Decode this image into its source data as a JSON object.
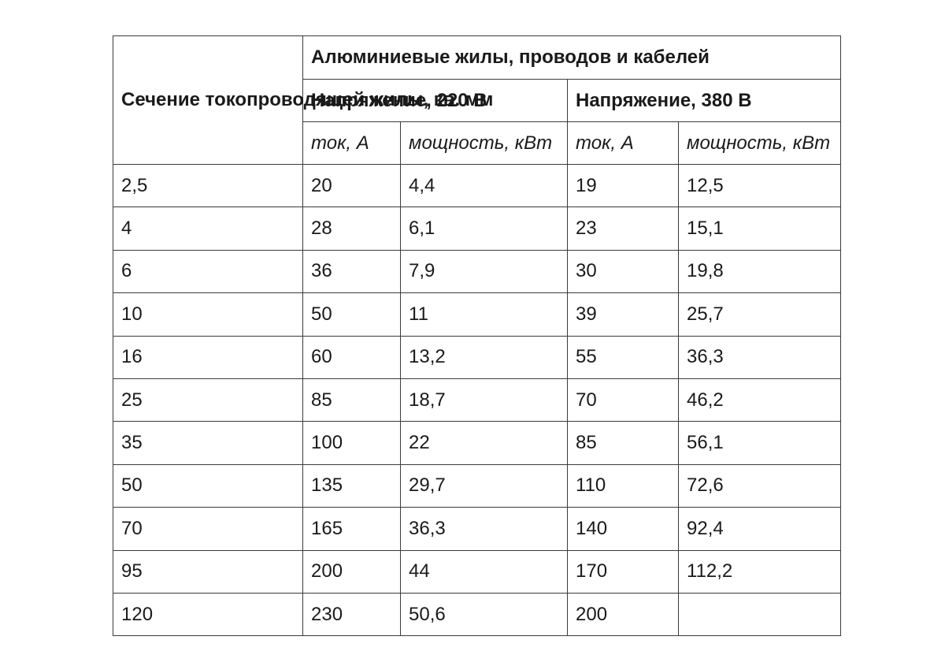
{
  "table": {
    "corner_header": "Сечение токопроводящей жилы, кв. мм",
    "group_header": "Алюминиевые жилы, проводов и кабелей",
    "voltage_220": "Напряжение, 220 В",
    "voltage_380": "Напряжение, 380 В",
    "sub_headers": [
      "ток, А",
      "мощность, кВт",
      "ток, А",
      "мощность, кВт"
    ],
    "rows": [
      [
        "2,5",
        "20",
        "4,4",
        "19",
        "12,5"
      ],
      [
        "4",
        "28",
        "6,1",
        "23",
        "15,1"
      ],
      [
        "6",
        "36",
        "7,9",
        "30",
        "19,8"
      ],
      [
        "10",
        "50",
        "11",
        "39",
        "25,7"
      ],
      [
        "16",
        "60",
        "13,2",
        "55",
        "36,3"
      ],
      [
        "25",
        "85",
        "18,7",
        "70",
        "46,2"
      ],
      [
        "35",
        "100",
        "22",
        "85",
        "56,1"
      ],
      [
        "50",
        "135",
        "29,7",
        "110",
        "72,6"
      ],
      [
        "70",
        "165",
        "36,3",
        "140",
        "92,4"
      ],
      [
        "95",
        "200",
        "44",
        "170",
        "112,2"
      ],
      [
        "120",
        "230",
        "50,6",
        "200",
        ""
      ]
    ]
  }
}
